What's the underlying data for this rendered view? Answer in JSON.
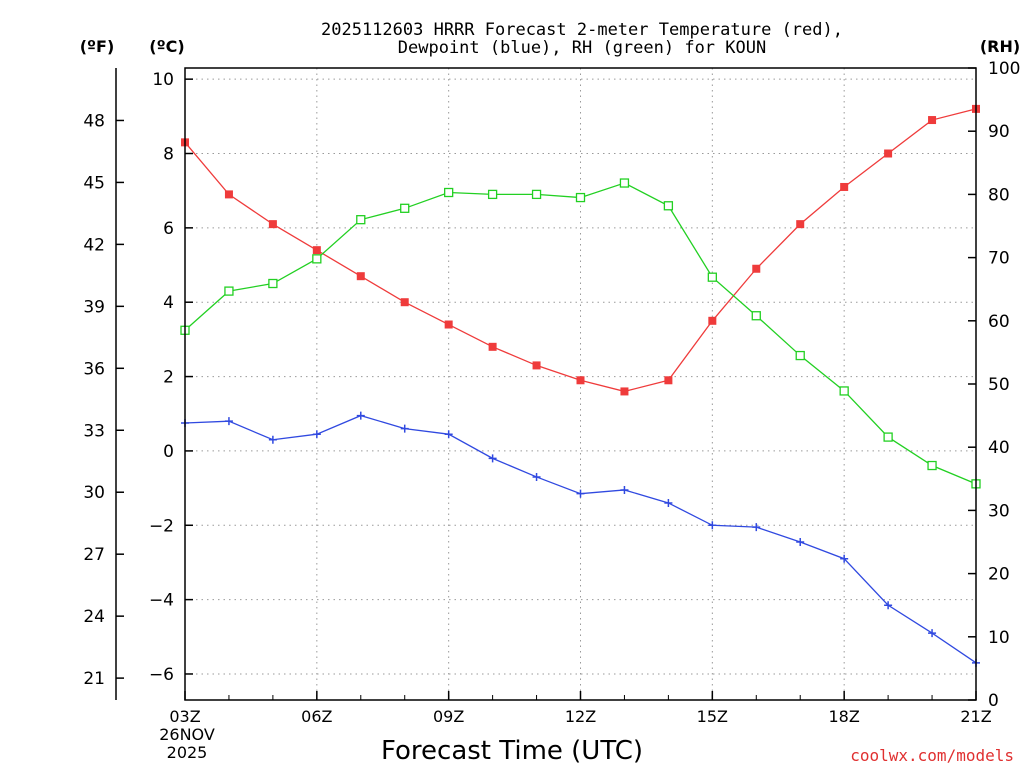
{
  "chart_data": {
    "type": "line",
    "title_line1": "2025112603 HRRR Forecast 2-meter Temperature (red),",
    "title_line2": "Dewpoint (blue), RH (green) for KOUN",
    "left_unit_f": "(ºF)",
    "left_unit_c": "(ºC)",
    "right_unit": "(RH)",
    "xlabel": "Forecast Time (UTC)",
    "date_label_day": "26NOV",
    "date_label_year": "2025",
    "credit": "coolwx.com/models",
    "x_hours": [
      3,
      4,
      5,
      6,
      7,
      8,
      9,
      10,
      11,
      12,
      13,
      14,
      15,
      16,
      17,
      18,
      19,
      20,
      21
    ],
    "x_ticks": [
      3,
      6,
      9,
      12,
      15,
      18,
      21
    ],
    "x_tick_labels": [
      "03Z",
      "06Z",
      "09Z",
      "12Z",
      "15Z",
      "18Z",
      "21Z"
    ],
    "xlim": [
      3,
      21
    ],
    "ylim_c": [
      -6.7,
      10.3
    ],
    "yticks_c": [
      -6,
      -4,
      -2,
      0,
      2,
      4,
      6,
      8,
      10
    ],
    "yticks_c_labels": [
      "−6",
      "−4",
      "−2",
      "0",
      "2",
      "4",
      "6",
      "8",
      "10"
    ],
    "yticks_f": [
      21,
      24,
      27,
      30,
      33,
      36,
      39,
      42,
      45,
      48
    ],
    "yticks_f_labels": [
      "21",
      "24",
      "27",
      "30",
      "33",
      "36",
      "39",
      "42",
      "45",
      "48"
    ],
    "ylim_rh": [
      0,
      100
    ],
    "yticks_rh": [
      0,
      10,
      20,
      30,
      40,
      50,
      60,
      70,
      80,
      90,
      100
    ],
    "yticks_rh_labels": [
      "0",
      "10",
      "20",
      "30",
      "40",
      "50",
      "60",
      "70",
      "80",
      "90",
      "100"
    ],
    "grid": true,
    "series": [
      {
        "name": "Temperature",
        "axis": "C",
        "color": "#ef3b3b",
        "marker": "filled-square",
        "values": [
          8.3,
          6.9,
          6.1,
          5.4,
          4.7,
          4.0,
          3.4,
          2.8,
          2.3,
          1.9,
          1.6,
          1.9,
          3.5,
          4.9,
          6.1,
          7.1,
          8.0,
          8.9,
          9.2
        ]
      },
      {
        "name": "Dewpoint",
        "axis": "C",
        "color": "#3049e0",
        "marker": "plus",
        "values": [
          0.75,
          0.8,
          0.3,
          0.45,
          0.95,
          0.6,
          0.45,
          -0.2,
          -0.7,
          -1.15,
          -1.05,
          -1.4,
          -2.0,
          -2.05,
          -2.45,
          -2.9,
          -4.15,
          -4.9,
          -5.7
        ]
      },
      {
        "name": "RH",
        "axis": "RH",
        "color": "#22d022",
        "marker": "open-square",
        "values": [
          58.5,
          64.7,
          65.9,
          69.8,
          76.0,
          77.8,
          80.3,
          80.0,
          80.0,
          79.5,
          81.8,
          78.2,
          66.9,
          60.8,
          54.5,
          48.9,
          41.6,
          37.1,
          34.2
        ]
      }
    ]
  }
}
